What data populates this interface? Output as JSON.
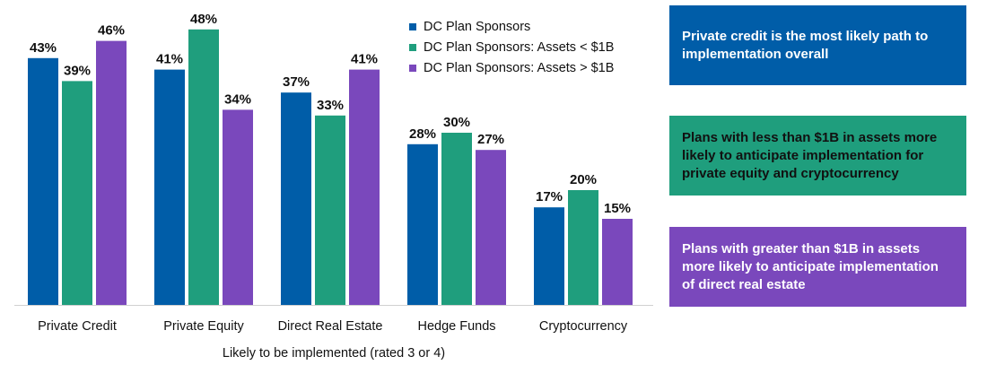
{
  "chart_data": {
    "type": "bar",
    "categories": [
      "Private Credit",
      "Private Equity",
      "Direct Real Estate",
      "Hedge Funds",
      "Cryptocurrency"
    ],
    "series": [
      {
        "name": "DC Plan Sponsors",
        "color": "#005DA8",
        "values": [
          43,
          41,
          37,
          28,
          17
        ]
      },
      {
        "name": "DC Plan Sponsors: Assets < $1B",
        "color": "#1F9E7D",
        "values": [
          39,
          48,
          33,
          30,
          20
        ]
      },
      {
        "name": "DC Plan Sponsors: Assets > $1B",
        "color": "#7A48BC",
        "values": [
          46,
          34,
          41,
          27,
          15
        ]
      }
    ],
    "value_suffix": "%",
    "xlabel": "Likely to be implemented (rated 3 or 4)",
    "ylabel": "",
    "ylim": [
      0,
      53
    ],
    "grid": false,
    "legend_position": "top-right"
  },
  "callouts": [
    {
      "text": "Private credit is the most likely path to implementation overall",
      "bg": "#005DA8",
      "fg": "#ffffff"
    },
    {
      "text": "Plans with less than $1B in assets more likely to anticipate implementation for private equity and cryptocurrency",
      "bg": "#1F9E7D",
      "fg": "#111111"
    },
    {
      "text": "Plans with greater than $1B in assets more likely to anticipate implementation of direct real estate",
      "bg": "#7A48BC",
      "fg": "#ffffff"
    }
  ]
}
